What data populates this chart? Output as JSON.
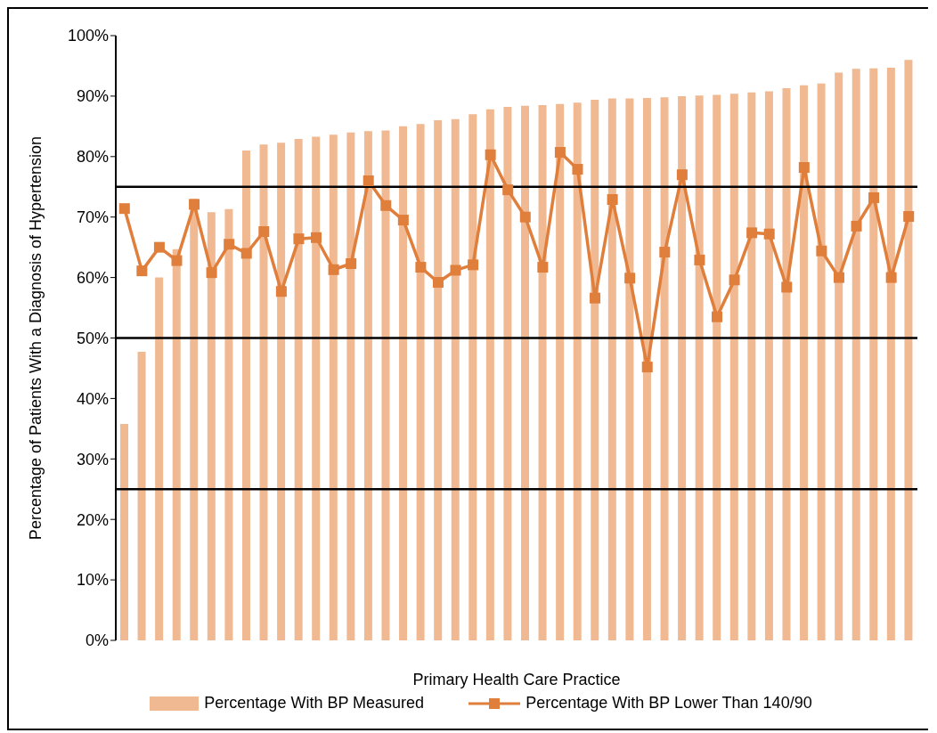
{
  "chart_data": {
    "type": "bar",
    "xlabel": "Primary Health Care Practice",
    "ylabel": "Percentage of Patients With a Diagnosis of Hypertension",
    "categories": [
      null,
      null,
      null,
      null,
      null,
      null,
      null,
      null,
      null,
      null,
      null,
      null,
      null,
      null,
      null,
      null,
      null,
      null,
      null,
      null,
      null,
      null,
      null,
      null,
      null,
      null,
      null,
      null,
      null,
      null,
      null,
      null,
      null,
      null,
      null,
      null,
      null,
      null,
      null,
      null,
      null,
      null,
      null,
      null,
      null,
      null
    ],
    "series": [
      {
        "name": "Percentage With BP Measured",
        "color": "#f0b991",
        "values": [
          35.8,
          47.7,
          60,
          64.7,
          73,
          70.8,
          71.3,
          81,
          82,
          82.3,
          82.9,
          83.3,
          83.6,
          84,
          84.2,
          84.3,
          85,
          85.4,
          86,
          86.2,
          87,
          87.8,
          88.2,
          88.4,
          88.5,
          88.7,
          88.9,
          89.4,
          89.6,
          89.6,
          89.7,
          89.8,
          90,
          90.1,
          90.2,
          90.4,
          90.6,
          90.8,
          91.3,
          91.8,
          92.1,
          93.9,
          94.5,
          94.6,
          94.7,
          96
        ]
      },
      {
        "name": "Percentage With BP Lower Than 140/90",
        "type": "line",
        "color": "#e07e3c",
        "marker": "square",
        "line_style": "solid",
        "values": [
          71.4,
          61.1,
          65,
          62.8,
          72.1,
          60.8,
          65.5,
          64,
          67.6,
          57.7,
          66.4,
          66.6,
          61.3,
          62.3,
          76,
          71.9,
          69.5,
          61.7,
          59.2,
          61.2,
          62.1,
          80.3,
          74.5,
          70,
          61.7,
          80.7,
          77.9,
          56.6,
          72.9,
          59.9,
          45.2,
          64.2,
          77,
          62.9,
          53.5,
          59.6,
          67.4,
          67.2,
          58.4,
          78.2,
          64.4,
          60,
          68.5,
          73.2,
          60,
          70.1
        ]
      }
    ],
    "ylim": [
      0,
      100
    ],
    "yticks": [
      {
        "value": 0,
        "label": "0%"
      },
      {
        "value": 10,
        "label": "10%"
      },
      {
        "value": 20,
        "label": "20%"
      },
      {
        "value": 30,
        "label": "30%"
      },
      {
        "value": 40,
        "label": "40%"
      },
      {
        "value": 50,
        "label": "50%"
      },
      {
        "value": 60,
        "label": "60%"
      },
      {
        "value": 70,
        "label": "70%"
      },
      {
        "value": 80,
        "label": "80%"
      },
      {
        "value": 90,
        "label": "90%"
      },
      {
        "value": 100,
        "label": "100%"
      }
    ],
    "ref_lines": [
      {
        "axis": "y",
        "value": 25,
        "color": "#000000"
      },
      {
        "axis": "y",
        "value": 50,
        "color": "#000000"
      },
      {
        "axis": "y",
        "value": 75,
        "color": "#000000"
      }
    ],
    "grid": false,
    "legend": "bottom",
    "tick_labels": "y"
  }
}
